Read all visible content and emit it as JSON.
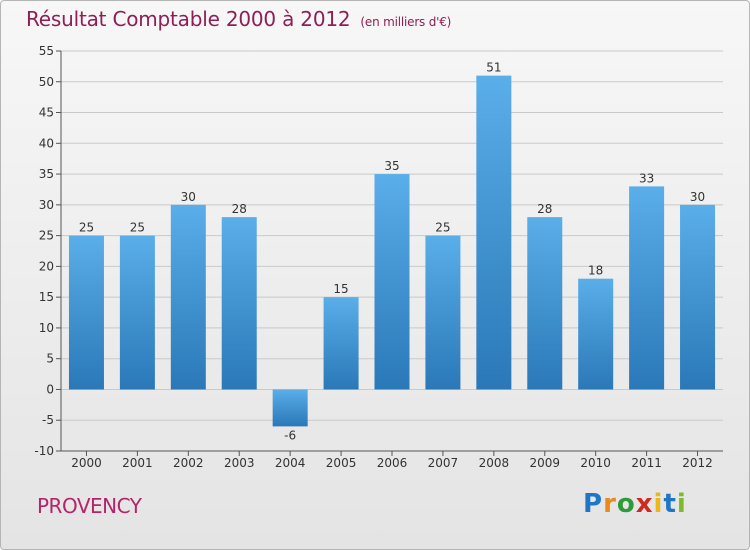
{
  "page": {
    "title": "Résultat Comptable 2000 à 2012",
    "unit": "(en milliers d'€)",
    "city": "PROVENCY",
    "logo": {
      "letters": [
        "P",
        "r",
        "o",
        "x",
        "i",
        "t",
        "i"
      ],
      "colors": [
        "#1f76c4",
        "#e98a1d",
        "#2e9a3a",
        "#d2291f",
        "#e9b81d",
        "#1f76c4",
        "#7fba2b"
      ]
    }
  },
  "colors": {
    "title": "#8e1f55",
    "bar_light": "#5aaee9",
    "bar_dark": "#2a78b8",
    "grid": "#c9c9c9"
  },
  "chart_data": {
    "type": "bar",
    "title": "Résultat Comptable 2000 à 2012",
    "subtitle": "(en milliers d'€)",
    "categories": [
      "2000",
      "2001",
      "2002",
      "2003",
      "2004",
      "2005",
      "2006",
      "2007",
      "2008",
      "2009",
      "2010",
      "2011",
      "2012"
    ],
    "values": [
      25,
      25,
      30,
      28,
      -6,
      15,
      35,
      25,
      51,
      28,
      18,
      33,
      30
    ],
    "ylim": [
      -10,
      55
    ],
    "yticks": [
      -10,
      -5,
      0,
      5,
      10,
      15,
      20,
      25,
      30,
      35,
      40,
      45,
      50,
      55
    ],
    "xlabel": "",
    "ylabel": "",
    "grid": true
  }
}
